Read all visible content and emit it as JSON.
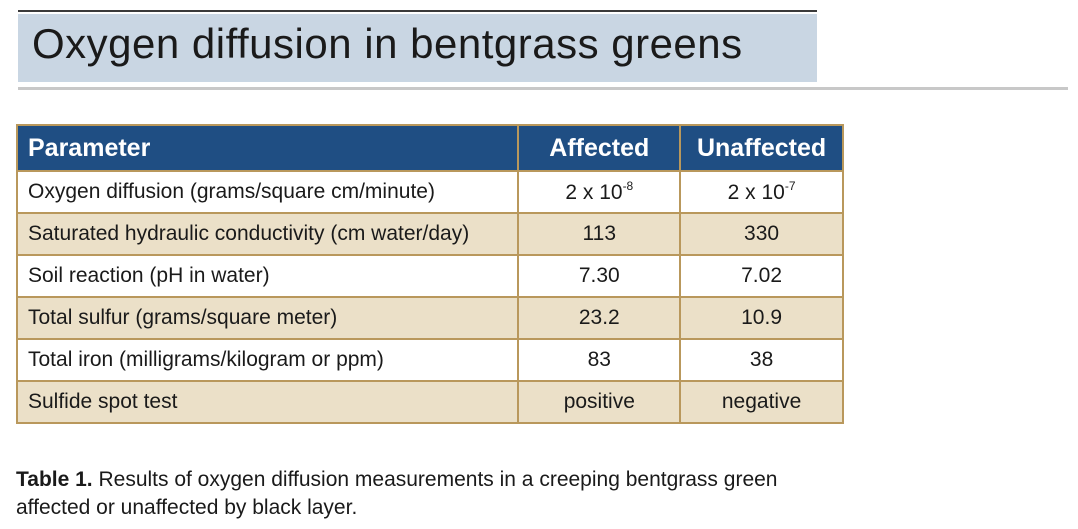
{
  "title": "Oxygen diffusion in bentgrass greens",
  "table": {
    "headers": [
      "Parameter",
      "Affected",
      "Unaffected"
    ],
    "rows": [
      {
        "parameter": "Oxygen diffusion (grams/square cm/minute)",
        "affected_base": "2 x 10",
        "affected_exp": "-8",
        "unaffected_base": "2 x 10",
        "unaffected_exp": "-7"
      },
      {
        "parameter": "Saturated hydraulic conductivity (cm water/day)",
        "affected": "113",
        "unaffected": "330"
      },
      {
        "parameter": "Soil reaction (pH in water)",
        "affected": "7.30",
        "unaffected": "7.02"
      },
      {
        "parameter": "Total sulfur (grams/square meter)",
        "affected": "23.2",
        "unaffected": "10.9"
      },
      {
        "parameter": "Total iron (milligrams/kilogram or ppm)",
        "affected": "83",
        "unaffected": "38"
      },
      {
        "parameter": "Sulfide spot test",
        "affected": "positive",
        "unaffected": "negative"
      }
    ]
  },
  "caption": {
    "label": "Table 1.",
    "text": " Results of oxygen diffusion measurements in a creeping bentgrass green affected or unaffected by black layer."
  },
  "colors": {
    "header_bg": "#1f4e83",
    "title_band": "#c9d6e3",
    "row_tan": "#ebe0c8",
    "border": "#b9985c"
  }
}
